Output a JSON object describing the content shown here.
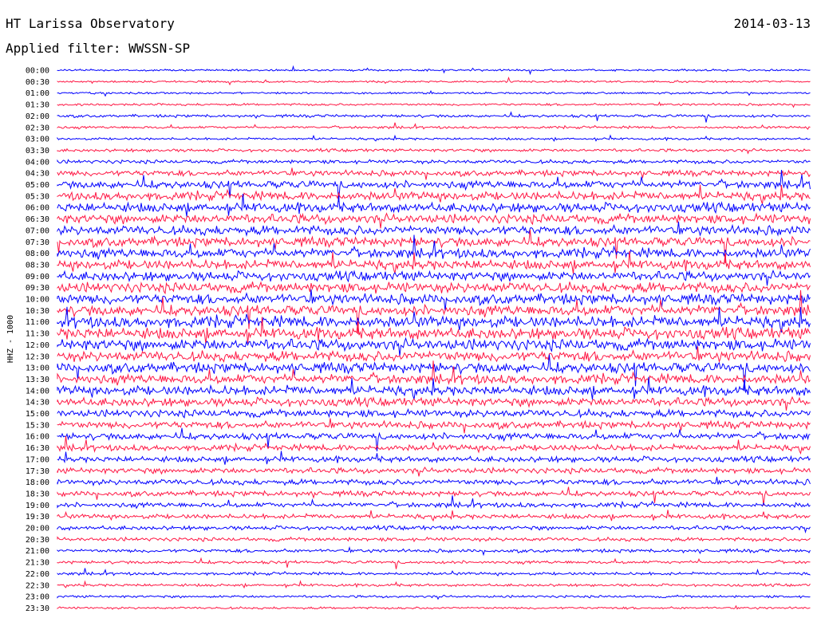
{
  "header": {
    "station": "HT Larissa Observatory",
    "date": "2014-03-13",
    "filter": "Applied filter: WWSSN-SP"
  },
  "chart_data": {
    "type": "line",
    "title": "HT Larissa Observatory",
    "subtitle": "Applied filter: WWSSN-SP",
    "ylabel": "HHZ - 1000",
    "categories": [
      "00:00",
      "00:30",
      "01:00",
      "01:30",
      "02:00",
      "02:30",
      "03:00",
      "03:30",
      "04:00",
      "04:30",
      "05:00",
      "05:30",
      "06:00",
      "06:30",
      "07:00",
      "07:30",
      "08:00",
      "08:30",
      "09:00",
      "09:30",
      "10:00",
      "10:30",
      "11:00",
      "11:30",
      "12:00",
      "12:30",
      "13:00",
      "13:30",
      "14:00",
      "14:30",
      "15:00",
      "15:30",
      "16:00",
      "16:30",
      "17:00",
      "17:30",
      "18:00",
      "18:30",
      "19:00",
      "19:30",
      "20:00",
      "20:30",
      "21:00",
      "21:30",
      "22:00",
      "22:30",
      "23:00",
      "23:30"
    ],
    "amplitude": [
      1,
      1,
      1,
      1.2,
      1.5,
      1.3,
      1.2,
      1.6,
      2,
      3,
      4,
      4.5,
      5,
      5,
      5,
      5,
      5,
      5,
      5,
      5.5,
      5.5,
      5.5,
      6,
      6,
      6,
      5.5,
      5.5,
      5,
      5,
      4.5,
      4,
      3.8,
      3.5,
      3.2,
      3,
      3,
      3,
      2.8,
      2.6,
      2.4,
      2.2,
      2,
      1.8,
      1.6,
      1.5,
      1.4,
      1.3,
      1.2
    ],
    "series_colors": [
      "#0000ff",
      "#ff1744"
    ],
    "grid": false
  }
}
